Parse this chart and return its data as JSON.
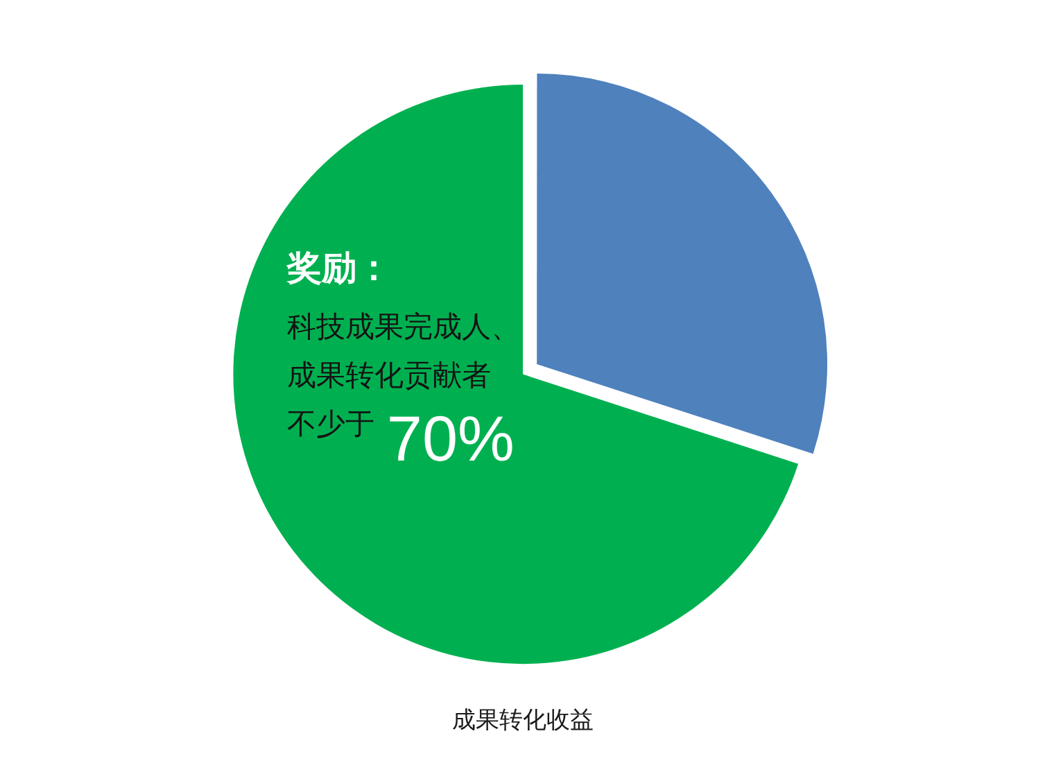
{
  "chart_data": {
    "type": "pie",
    "title": "成果转化收益",
    "categories": [
      null,
      null
    ],
    "values": [
      30,
      70
    ],
    "colors": [
      "#4f81bd",
      "#00b050"
    ],
    "value_labels": [
      null,
      "70%"
    ],
    "annotations": [
      "奖励：",
      "科技成果完成人、",
      "成果转化贡献者",
      "不少于"
    ]
  }
}
